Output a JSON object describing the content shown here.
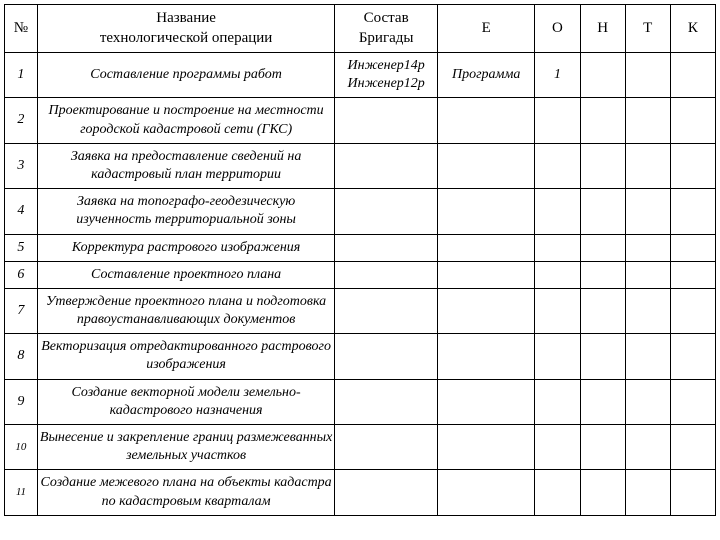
{
  "table": {
    "columns": [
      {
        "key": "num",
        "label": "№",
        "class": "col-num"
      },
      {
        "key": "name",
        "label": "Название\nтехнологической операции",
        "class": "col-name"
      },
      {
        "key": "crew",
        "label": "Состав\nБригады",
        "class": "col-crew"
      },
      {
        "key": "e",
        "label": "Е",
        "class": "col-e"
      },
      {
        "key": "o",
        "label": "О",
        "class": "col-o"
      },
      {
        "key": "h",
        "label": "Н",
        "class": "col-h"
      },
      {
        "key": "t",
        "label": "Т",
        "class": "col-t"
      },
      {
        "key": "k",
        "label": "К",
        "class": "col-k"
      }
    ],
    "rows": [
      {
        "num": "1",
        "name": "Составление программы работ",
        "crew": "Инженер14р\nИнженер12р",
        "e": "Программа",
        "o": "1",
        "h": "",
        "t": "",
        "k": ""
      },
      {
        "num": "2",
        "name": "Проектирование и построение на местности городской кадастровой сети (ГКС)",
        "crew": "",
        "e": "",
        "o": "",
        "h": "",
        "t": "",
        "k": ""
      },
      {
        "num": "3",
        "name": "Заявка на предоставление сведений на кадастровый план территории",
        "crew": "",
        "e": "",
        "o": "",
        "h": "",
        "t": "",
        "k": ""
      },
      {
        "num": "4",
        "name": "Заявка на топографо-геодезическую изученность территориальной зоны",
        "crew": "",
        "e": "",
        "o": "",
        "h": "",
        "t": "",
        "k": ""
      },
      {
        "num": "5",
        "name": "Корректура растрового изображения",
        "crew": "",
        "e": "",
        "o": "",
        "h": "",
        "t": "",
        "k": ""
      },
      {
        "num": "6",
        "name": "Составление проектного плана",
        "crew": "",
        "e": "",
        "o": "",
        "h": "",
        "t": "",
        "k": ""
      },
      {
        "num": "7",
        "name": "Утверждение проектного плана и подготовка правоустанавливающих документов",
        "crew": "",
        "e": "",
        "o": "",
        "h": "",
        "t": "",
        "k": ""
      },
      {
        "num": "8",
        "name": "Векторизация отредактированного растрового изображения",
        "crew": "",
        "e": "",
        "o": "",
        "h": "",
        "t": "",
        "k": ""
      },
      {
        "num": "9",
        "name": "Создание векторной модели земельно-кадастрового назначения",
        "crew": "",
        "e": "",
        "o": "",
        "h": "",
        "t": "",
        "k": ""
      },
      {
        "num": "10",
        "name": "Вынесение и закрепление границ размежеванных земельных участков",
        "crew": "",
        "e": "",
        "o": "",
        "h": "",
        "t": "",
        "k": ""
      },
      {
        "num": "11",
        "name": "Создание межевого плана на объекты кадастра по кадастровым кварталам",
        "crew": "",
        "e": "",
        "o": "",
        "h": "",
        "t": "",
        "k": ""
      }
    ],
    "num_fontsize_small": "11px",
    "header_fontsize": "15px",
    "body_fontsize": "14px"
  }
}
